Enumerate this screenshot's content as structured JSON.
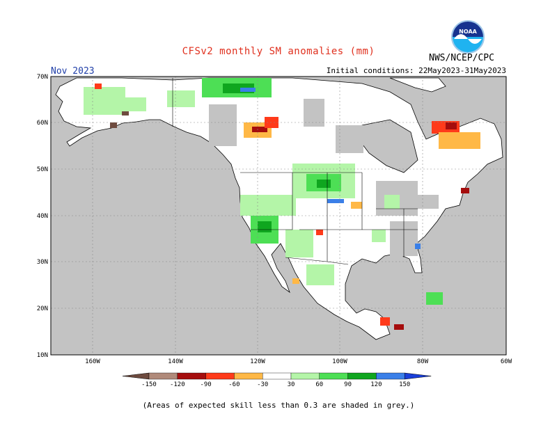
{
  "title": "CFSv2 monthly SM anomalies (mm)",
  "month": "Nov 2023",
  "center": "NWS/NCEP/CPC",
  "initial_conditions": "Initial conditions: 22May2023-31May2023",
  "logo_text": "NOAA",
  "footnote": "(Areas of expected skill less than 0.3 are shaded in grey.)",
  "lat_labels": [
    "70N",
    "60N",
    "50N",
    "40N",
    "30N",
    "20N",
    "10N"
  ],
  "lon_labels": [
    "160W",
    "140W",
    "120W",
    "100W",
    "80W",
    "60W"
  ],
  "colorbar": {
    "ticks": [
      "-150",
      "-120",
      "-90",
      "-60",
      "-30",
      "30",
      "60",
      "90",
      "120",
      "150"
    ],
    "colors": [
      "#6e4b3f",
      "#b08a7a",
      "#a50d0d",
      "#ff3a1a",
      "#ffb846",
      "#ffffff",
      "#b4f5a8",
      "#4ddf55",
      "#0fa61f",
      "#3a7fe8",
      "#1a3fd9"
    ]
  },
  "colors": {
    "land_skill": "#ffffff",
    "no_skill_grey": "#c3c3c3",
    "ocean": "#c3c3c3"
  }
}
